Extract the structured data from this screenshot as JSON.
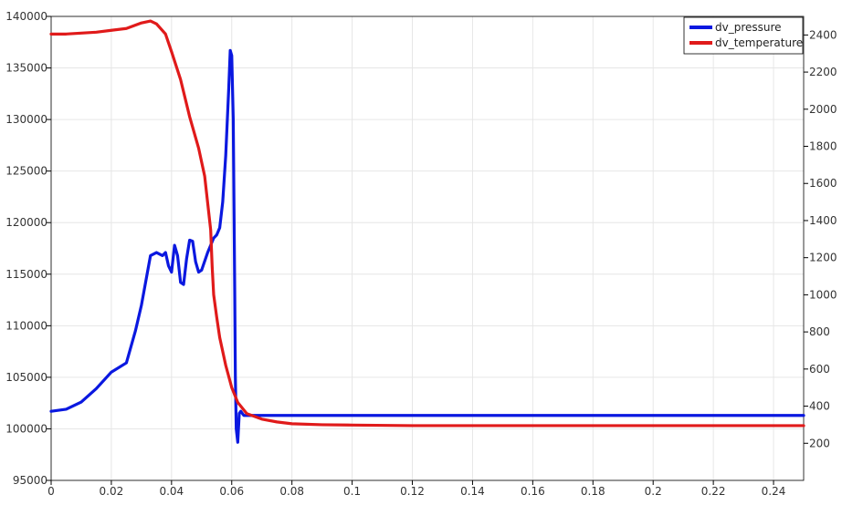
{
  "chart_data": {
    "type": "line",
    "x_axis": {
      "range": [
        0,
        0.25
      ],
      "ticks": [
        0,
        0.02,
        0.04,
        0.06,
        0.08,
        0.1,
        0.12,
        0.14,
        0.16,
        0.18,
        0.2,
        0.22,
        0.24
      ],
      "tick_labels": [
        "0",
        "0.02",
        "0.04",
        "0.06",
        "0.08",
        "0.1",
        "0.12",
        "0.14",
        "0.16",
        "0.18",
        "0.2",
        "0.22",
        "0.24"
      ]
    },
    "y_left": {
      "range": [
        95000,
        140000
      ],
      "ticks": [
        95000,
        100000,
        105000,
        110000,
        115000,
        120000,
        125000,
        130000,
        135000,
        140000
      ],
      "tick_labels": [
        "95000",
        "100000",
        "105000",
        "110000",
        "115000",
        "120000",
        "125000",
        "130000",
        "135000",
        "140000"
      ]
    },
    "y_right": {
      "range": [
        0,
        2500
      ],
      "ticks": [
        200,
        400,
        600,
        800,
        1000,
        1200,
        1400,
        1600,
        1800,
        2000,
        2200,
        2400
      ],
      "tick_labels": [
        "200",
        "400",
        "600",
        "800",
        "1000",
        "1200",
        "1400",
        "1600",
        "1800",
        "2000",
        "2200",
        "2400"
      ]
    },
    "grid": true,
    "legend_position": "top-right",
    "series": [
      {
        "name": "dv_pressure",
        "axis": "left",
        "color": "#0a18e0",
        "x": [
          0,
          0.005,
          0.01,
          0.015,
          0.02,
          0.025,
          0.028,
          0.03,
          0.033,
          0.035,
          0.037,
          0.038,
          0.039,
          0.04,
          0.041,
          0.042,
          0.043,
          0.044,
          0.045,
          0.046,
          0.047,
          0.048,
          0.049,
          0.05,
          0.052,
          0.054,
          0.055,
          0.056,
          0.057,
          0.058,
          0.059,
          0.0595,
          0.06,
          0.0605,
          0.061,
          0.0612,
          0.0615,
          0.062,
          0.0625,
          0.063,
          0.064,
          0.065,
          0.07,
          0.1,
          0.15,
          0.2,
          0.25
        ],
        "y": [
          101700,
          101900,
          102600,
          103900,
          105500,
          106400,
          109500,
          112000,
          116800,
          117100,
          116800,
          117100,
          115800,
          115200,
          117800,
          116800,
          114200,
          114000,
          116500,
          118300,
          118200,
          116200,
          115200,
          115400,
          117100,
          118500,
          118800,
          119500,
          122000,
          126500,
          133000,
          136700,
          136200,
          130000,
          113000,
          105000,
          100000,
          98700,
          101500,
          101700,
          101300,
          101300,
          101300,
          101300,
          101300,
          101300,
          101300
        ]
      },
      {
        "name": "dv_temperature",
        "axis": "right",
        "color": "#e01a1a",
        "x": [
          0,
          0.005,
          0.01,
          0.015,
          0.02,
          0.025,
          0.03,
          0.033,
          0.035,
          0.038,
          0.04,
          0.043,
          0.046,
          0.049,
          0.051,
          0.053,
          0.0535,
          0.054,
          0.055,
          0.056,
          0.058,
          0.06,
          0.062,
          0.065,
          0.07,
          0.075,
          0.08,
          0.09,
          0.1,
          0.12,
          0.15,
          0.2,
          0.25
        ],
        "y": [
          2405,
          2405,
          2410,
          2415,
          2425,
          2435,
          2465,
          2475,
          2460,
          2405,
          2310,
          2160,
          1960,
          1790,
          1640,
          1350,
          1150,
          1000,
          880,
          770,
          620,
          500,
          420,
          360,
          330,
          315,
          305,
          300,
          298,
          295,
          295,
          295,
          295
        ]
      }
    ]
  }
}
